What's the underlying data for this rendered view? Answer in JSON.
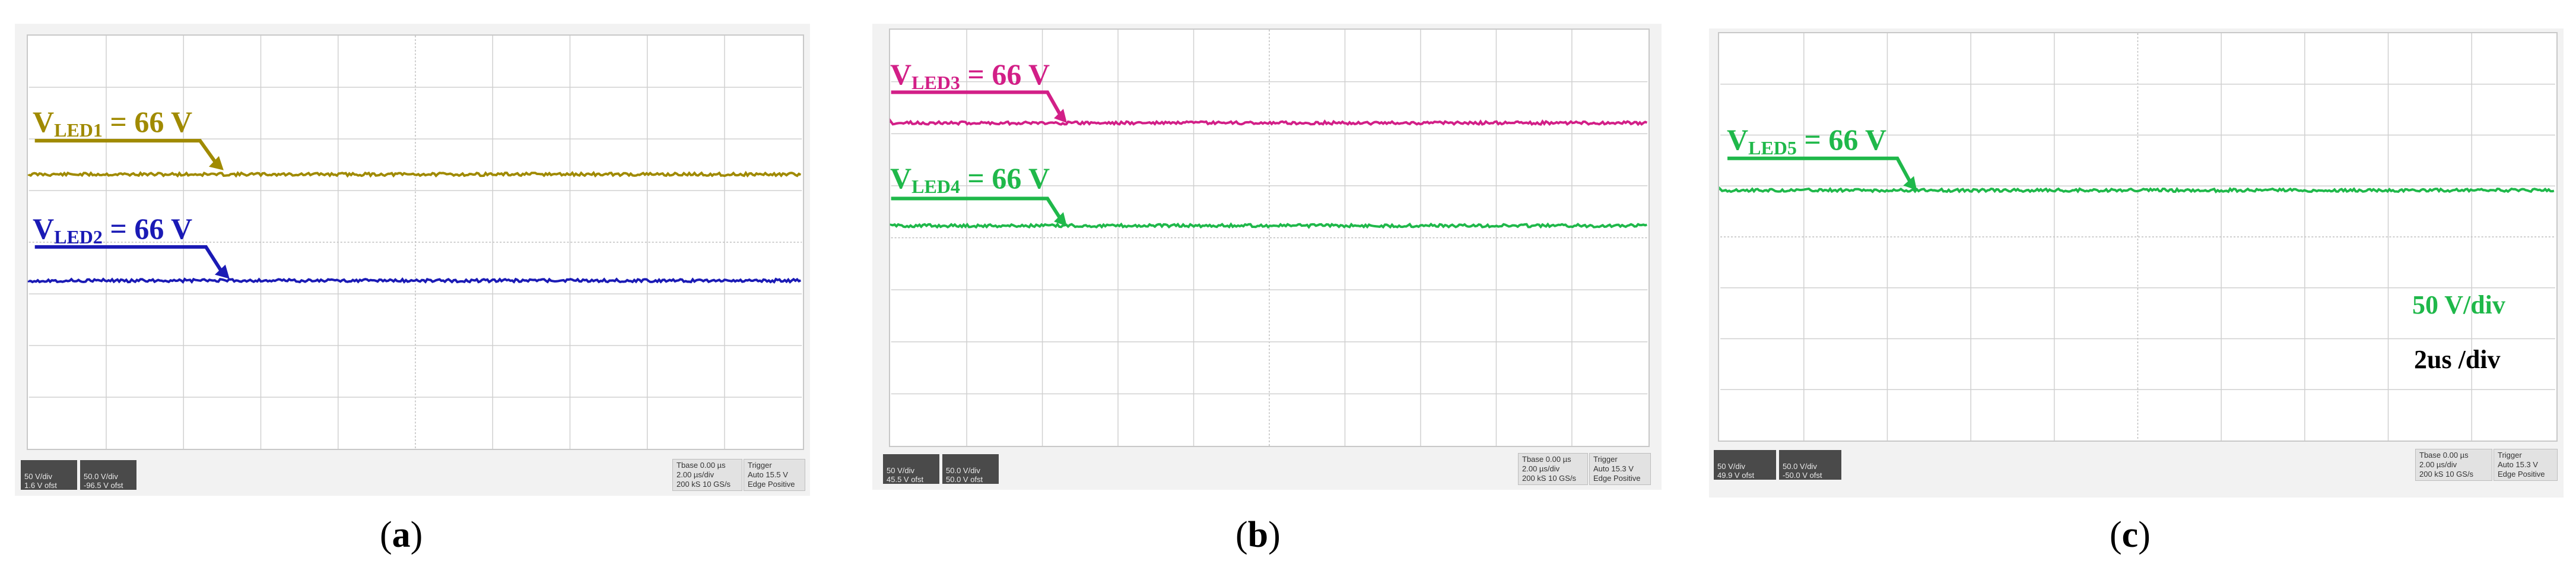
{
  "chart_data": [
    {
      "type": "line",
      "panel": "(a)",
      "panel_letter": "a",
      "series": [
        {
          "name": "VLED1 = 66 V",
          "label_main": "V",
          "label_sub": "LED1",
          "label_rest": " = 66 V",
          "value_v": 66,
          "color": "#a08a00"
        },
        {
          "name": "VLED2 = 66 V",
          "label_main": "V",
          "label_sub": "LED2",
          "label_rest": " = 66 V",
          "value_v": 66,
          "color": "#1a1ab5"
        }
      ],
      "grid": true,
      "info": {
        "ch_a": [
          "50 V/div",
          "1.6 V ofst"
        ],
        "ch_b": [
          "50.0 V/div",
          "-96.5 V ofst"
        ],
        "timebase": [
          "Tbase  0.00 µs",
          "2.00 µs/div",
          "200 kS  10 GS/s"
        ],
        "trigger": [
          "Trigger",
          "Auto  15.5 V",
          "Edge  Positive"
        ]
      }
    },
    {
      "type": "line",
      "panel": "(b)",
      "panel_letter": "b",
      "series": [
        {
          "name": "VLED3 = 66 V",
          "label_main": "V",
          "label_sub": "LED3",
          "label_rest": " = 66 V",
          "value_v": 66,
          "color": "#d21f87"
        },
        {
          "name": "VLED4 = 66 V",
          "label_main": "V",
          "label_sub": "LED4",
          "label_rest": " = 66 V",
          "value_v": 66,
          "color": "#1fb84a"
        }
      ],
      "grid": true,
      "info": {
        "ch_a": [
          "50 V/div",
          "45.5 V ofst"
        ],
        "ch_b": [
          "50.0 V/div",
          "50.0 V ofst"
        ],
        "timebase": [
          "Tbase  0.00 µs",
          "2.00 µs/div",
          "200 kS  10 GS/s"
        ],
        "trigger": [
          "Trigger",
          "Auto  15.3 V",
          "Edge  Positive"
        ]
      }
    },
    {
      "type": "line",
      "panel": "(c)",
      "panel_letter": "c",
      "series": [
        {
          "name": "VLED5 = 66 V",
          "label_main": "V",
          "label_sub": "LED5",
          "label_rest": " = 66 V",
          "value_v": 66,
          "color": "#1fb84a"
        }
      ],
      "grid": true,
      "scale_vertical": "50 V/div",
      "scale_time": "2us /div",
      "info": {
        "ch_a": [
          "50 V/div",
          "49.9 V ofst"
        ],
        "ch_b": [
          "50.0 V/div",
          "-50.0 V ofst"
        ],
        "timebase": [
          "Tbase  0.00 µs",
          "2.00 µs/div",
          "200 kS  10 GS/s"
        ],
        "trigger": [
          "Trigger",
          "Auto  15.3 V",
          "Edge  Positive"
        ]
      }
    }
  ],
  "colors": {
    "grid": "#d0d0d0",
    "grid_center": "#bdbdbd",
    "ch_box": "#4a4a4a",
    "text_black": "#000000"
  }
}
